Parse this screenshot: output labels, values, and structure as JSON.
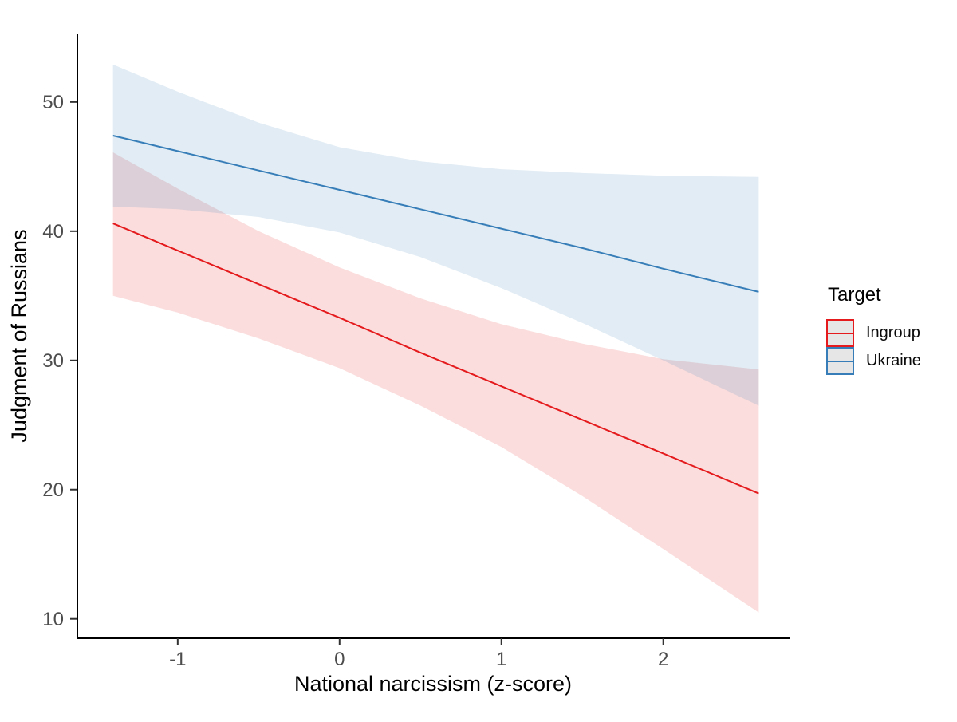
{
  "chart_data": {
    "type": "line",
    "title": "",
    "xlabel": "National narcissism (z-score)",
    "ylabel": "Judgment of Russians",
    "x_ticks": [
      "-1",
      "0",
      "1",
      "2"
    ],
    "x_tick_values": [
      -1,
      0,
      1,
      2
    ],
    "y_ticks": [
      "10",
      "20",
      "30",
      "40",
      "50"
    ],
    "y_tick_values": [
      10,
      20,
      30,
      40,
      50
    ],
    "xlim": [
      -1.62,
      2.78
    ],
    "ylim": [
      8.5,
      55.3
    ],
    "grid": false,
    "band_opacity": 0.15,
    "axis_color": "#000000",
    "tick_color": "#333333",
    "x": [
      -1.4,
      -1.0,
      -0.5,
      0.0,
      0.5,
      1.0,
      1.5,
      2.0,
      2.59
    ],
    "series": [
      {
        "name": "Ingroup",
        "color": "#E41A1C",
        "line": [
          40.6,
          38.5,
          35.9,
          33.3,
          30.6,
          28.0,
          25.4,
          22.8,
          19.7
        ],
        "upper": [
          46.1,
          43.3,
          40.0,
          37.2,
          34.8,
          32.8,
          31.3,
          30.1,
          29.3
        ],
        "lower": [
          35.0,
          33.7,
          31.7,
          29.4,
          26.5,
          23.3,
          19.5,
          15.4,
          10.5
        ]
      },
      {
        "name": "Ukraine",
        "color": "#377EB8",
        "line": [
          47.4,
          46.2,
          44.7,
          43.2,
          41.7,
          40.2,
          38.7,
          37.1,
          35.3
        ],
        "upper": [
          52.9,
          50.8,
          48.4,
          46.5,
          45.4,
          44.8,
          44.5,
          44.3,
          44.2
        ],
        "lower": [
          41.9,
          41.7,
          41.1,
          39.9,
          38.0,
          35.6,
          32.9,
          30.0,
          26.5
        ]
      }
    ],
    "legend": {
      "title": "Target",
      "position": "right",
      "entries": [
        {
          "label": "Ingroup",
          "color": "#E41A1C"
        },
        {
          "label": "Ukraine",
          "color": "#377EB8"
        }
      ]
    }
  }
}
